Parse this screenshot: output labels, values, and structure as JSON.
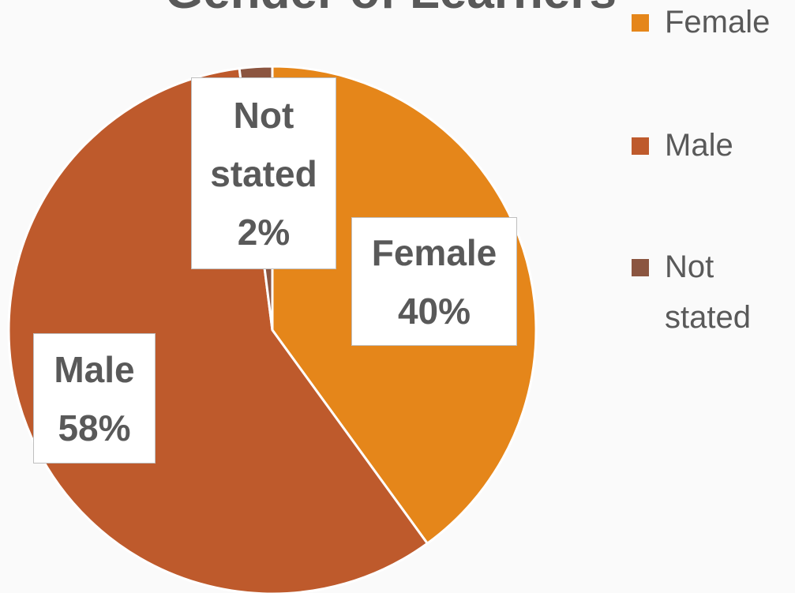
{
  "chart_data": {
    "type": "pie",
    "title": "Gender of Learners",
    "categories": [
      "Female",
      "Male",
      "Not stated"
    ],
    "values": [
      40,
      58,
      2
    ],
    "value_labels": [
      "40%",
      "58%",
      "2%"
    ],
    "colors": [
      "#e5861a",
      "#be5a2c",
      "#8b5540"
    ],
    "legend": "right"
  }
}
